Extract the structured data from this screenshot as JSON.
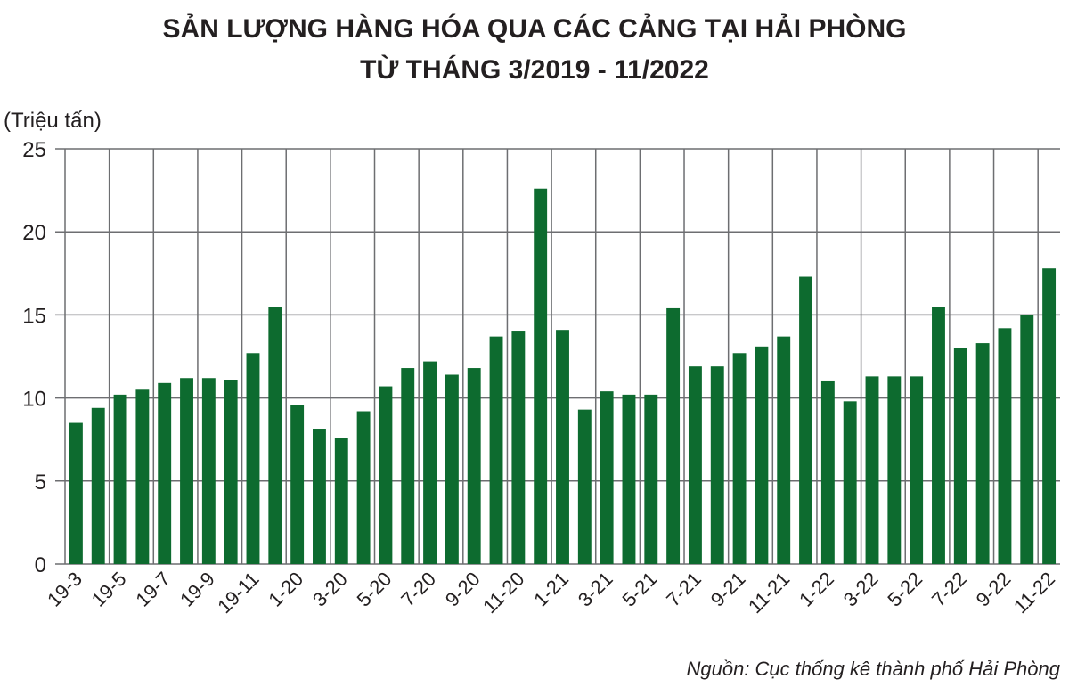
{
  "chart_data": {
    "type": "bar",
    "title": "SẢN LƯỢNG HÀNG HÓA QUA CÁC CẢNG TẠI HẢI PHÒNG",
    "subtitle": "TỪ THÁNG 3/2019 - 11/2022",
    "y_label": "(Triệu tấn)",
    "source": "Nguồn: Cục thống kê thành phố Hải Phòng",
    "categories": [
      "19-3",
      null,
      "19-5",
      null,
      "19-7",
      null,
      "19-9",
      null,
      "19-11",
      null,
      "1-20",
      null,
      "3-20",
      null,
      "5-20",
      null,
      "7-20",
      null,
      "9-20",
      null,
      "11-20",
      null,
      "1-21",
      null,
      "3-21",
      null,
      "5-21",
      null,
      "7-21",
      null,
      "9-21",
      null,
      "11-21",
      null,
      "1-22",
      null,
      "3-22",
      null,
      "5-22",
      null,
      "7-22",
      null,
      "9-22",
      null,
      "11-22"
    ],
    "values": [
      8.5,
      9.4,
      10.2,
      10.5,
      10.9,
      11.2,
      11.2,
      11.1,
      12.7,
      15.5,
      9.6,
      8.1,
      7.6,
      9.2,
      10.7,
      11.8,
      12.2,
      11.4,
      11.8,
      13.7,
      14.0,
      22.6,
      14.1,
      9.3,
      10.4,
      10.2,
      10.2,
      15.4,
      11.9,
      11.9,
      12.7,
      13.1,
      13.7,
      17.3,
      11.0,
      9.8,
      11.3,
      11.3,
      11.3,
      15.5,
      13.0,
      13.3,
      14.2,
      15.0,
      17.8
    ],
    "color": "#0d6b2f",
    "ylim": [
      0,
      25
    ],
    "yticks": [
      0,
      5,
      10,
      15,
      20,
      25
    ],
    "grid": true
  }
}
